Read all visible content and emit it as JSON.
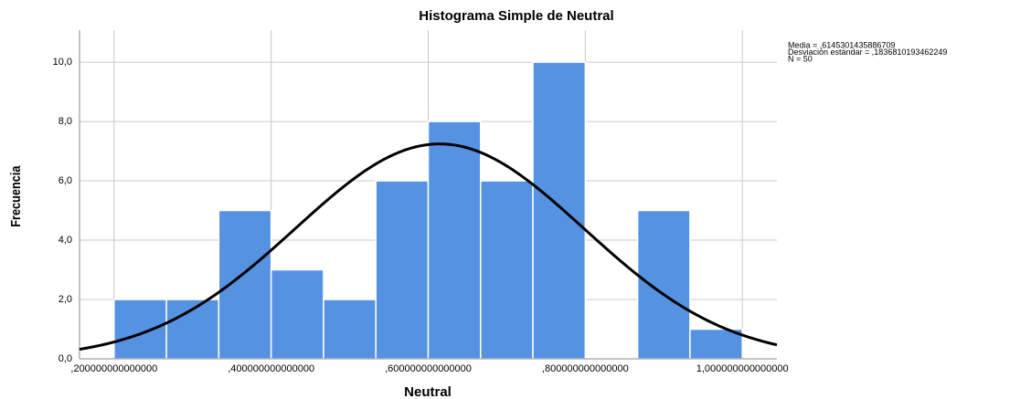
{
  "chart_data": {
    "type": "histogram",
    "title": "Histograma Simple de Neutral",
    "xlabel": "Neutral",
    "ylabel": "Frecuencia",
    "bins": [
      0.2,
      0.2667,
      0.3333,
      0.4,
      0.4667,
      0.5333,
      0.6,
      0.6667,
      0.7333,
      0.8,
      0.8667,
      0.9333,
      1.0
    ],
    "values": [
      2,
      2,
      5,
      3,
      2,
      6,
      8,
      6,
      10,
      0,
      5,
      1
    ],
    "color": "#5593e2",
    "xlim": [
      0.156,
      1.044
    ],
    "xticks": [
      {
        "value": 0.2,
        "label": ",200000000000000"
      },
      {
        "value": 0.4,
        "label": ",400000000000000"
      },
      {
        "value": 0.6,
        "label": ",600000000000000"
      },
      {
        "value": 0.8,
        "label": ",800000000000000"
      },
      {
        "value": 1.0,
        "label": "1,000000000000000"
      }
    ],
    "ylim": [
      0,
      11.08
    ],
    "yticks": [
      {
        "value": 0,
        "label": "0,0"
      },
      {
        "value": 2,
        "label": "2,0"
      },
      {
        "value": 4,
        "label": "4,0"
      },
      {
        "value": 6,
        "label": "6,0"
      },
      {
        "value": 8,
        "label": "8,0"
      },
      {
        "value": 10,
        "label": "10,0"
      }
    ],
    "grid": true,
    "stats": [
      {
        "value": 0.6145301435886709,
        "label": "Media = ,6145301435886709"
      },
      {
        "value": 0.1836810193462249,
        "label": "Desviación estándar = ,1836810193462249"
      },
      {
        "value": 50,
        "label": "N = 50"
      }
    ]
  }
}
